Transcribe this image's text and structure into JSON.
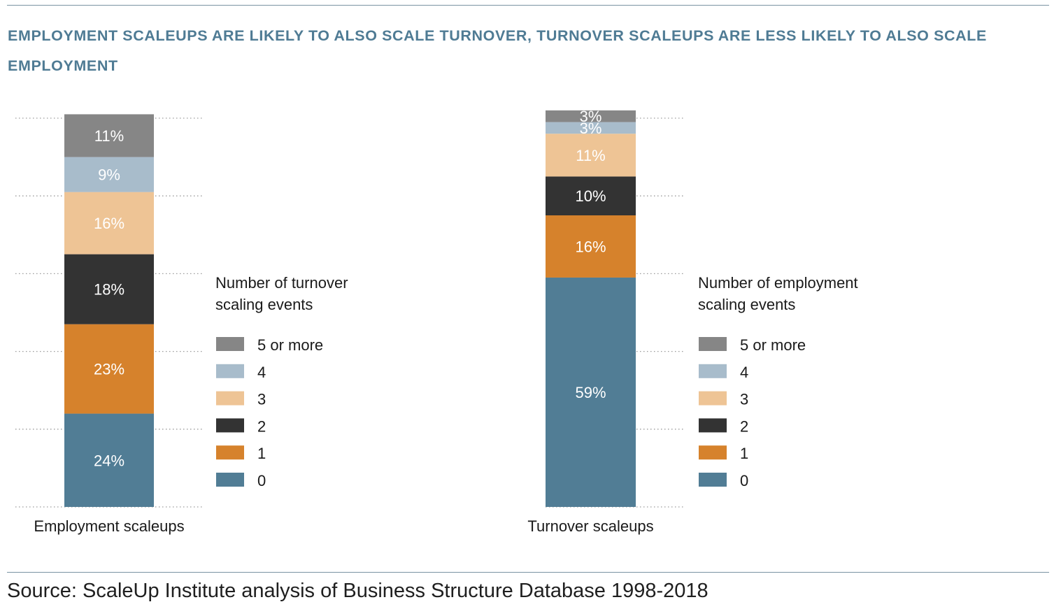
{
  "title": "EMPLOYMENT SCALEUPS ARE LIKELY TO ALSO SCALE TURNOVER, TURNOVER SCALEUPS ARE LESS LIKELY TO ALSO SCALE EMPLOYMENT",
  "source": "Source: ScaleUp Institute analysis of Business Structure Database 1998-2018",
  "colors": {
    "0": "#517d95",
    "1": "#d6822c",
    "2": "#333333",
    "3": "#eec495",
    "4": "#a8bccb",
    "5 or more": "#868686",
    "title": "#4f7b94",
    "rule": "#7a93a3"
  },
  "chart_data": [
    {
      "type": "bar",
      "stacked": true,
      "categories": [
        "Employment scaleups"
      ],
      "ylim": [
        0,
        100
      ],
      "grid": true,
      "legend_title": "Number of turnover scaling events",
      "legend_title_lines": [
        "Number of turnover",
        "scaling events"
      ],
      "legend": [
        "5 or more",
        "4",
        "3",
        "2",
        "1",
        "0"
      ],
      "series": [
        {
          "name": "0",
          "values": [
            24
          ],
          "label": "24%"
        },
        {
          "name": "1",
          "values": [
            23
          ],
          "label": "23%"
        },
        {
          "name": "2",
          "values": [
            18
          ],
          "label": "18%"
        },
        {
          "name": "3",
          "values": [
            16
          ],
          "label": "16%"
        },
        {
          "name": "4",
          "values": [
            9
          ],
          "label": "9%"
        },
        {
          "name": "5 or more",
          "values": [
            11
          ],
          "label": "11%"
        }
      ]
    },
    {
      "type": "bar",
      "stacked": true,
      "categories": [
        "Turnover scaleups"
      ],
      "ylim": [
        0,
        100
      ],
      "grid": true,
      "legend_title": "Number of employment scaling events",
      "legend_title_lines": [
        "Number of employment",
        "scaling events"
      ],
      "legend": [
        "5 or more",
        "4",
        "3",
        "2",
        "1",
        "0"
      ],
      "series": [
        {
          "name": "0",
          "values": [
            59
          ],
          "label": "59%"
        },
        {
          "name": "1",
          "values": [
            16
          ],
          "label": "16%"
        },
        {
          "name": "2",
          "values": [
            10
          ],
          "label": "10%"
        },
        {
          "name": "3",
          "values": [
            11
          ],
          "label": "11%"
        },
        {
          "name": "4",
          "values": [
            3
          ],
          "label": "3%"
        },
        {
          "name": "5 or more",
          "values": [
            3
          ],
          "label": "3%"
        }
      ]
    }
  ]
}
